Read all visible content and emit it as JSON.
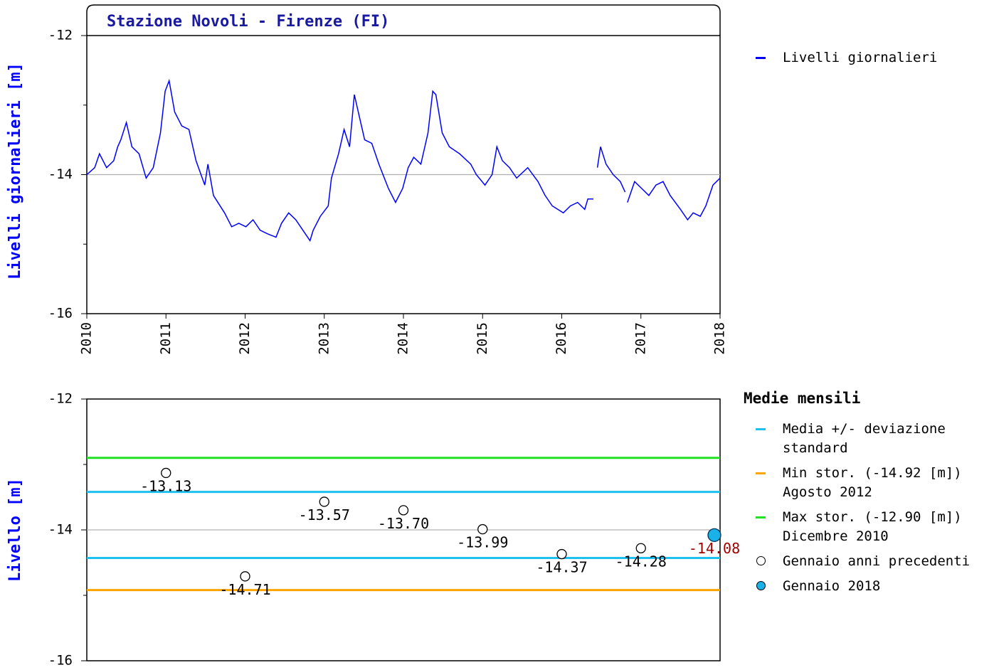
{
  "chart_data": [
    {
      "type": "line",
      "title": "Stazione Novoli - Firenze (FI)",
      "ylabel": "Livelli giornalieri [m]",
      "x": [
        2010.0,
        2010.1,
        2010.16,
        2010.25,
        2010.34,
        2010.39,
        2010.43,
        2010.5,
        2010.57,
        2010.66,
        2010.75,
        2010.84,
        2010.93,
        2010.99,
        2011.04,
        2011.11,
        2011.2,
        2011.29,
        2011.38,
        2011.49,
        2011.53,
        2011.6,
        2011.74,
        2011.83,
        2011.92,
        2012.01,
        2012.1,
        2012.19,
        2012.28,
        2012.39,
        2012.46,
        2012.55,
        2012.64,
        2012.73,
        2012.82,
        2012.86,
        2012.95,
        2013.05,
        2013.09,
        2013.18,
        2013.25,
        2013.32,
        2013.38,
        2013.45,
        2013.51,
        2013.6,
        2013.69,
        2013.81,
        2013.9,
        2013.99,
        2014.06,
        2014.13,
        2014.22,
        2014.31,
        2014.37,
        2014.41,
        2014.49,
        2014.58,
        2014.71,
        2014.85,
        2014.92,
        2015.03,
        2015.12,
        2015.18,
        2015.25,
        2015.34,
        2015.43,
        2015.57,
        2015.7,
        2015.79,
        2015.88,
        2016.02,
        2016.11,
        2016.2,
        2016.29,
        2016.33,
        2016.4,
        2016.42,
        2016.45,
        2016.49,
        2016.56,
        2016.65,
        2016.74,
        2016.8,
        2016.81,
        2016.83,
        2016.92,
        2017.01,
        2017.1,
        2017.19,
        2017.28,
        2017.37,
        2017.5,
        2017.59,
        2017.66,
        2017.75,
        2017.82,
        2017.91,
        2018.0
      ],
      "series": [
        {
          "name": "Livelli giornalieri",
          "color": "#0000ff",
          "values": [
            -14.0,
            -13.9,
            -13.7,
            -13.9,
            -13.8,
            -13.6,
            -13.5,
            -13.25,
            -13.6,
            -13.7,
            -14.05,
            -13.9,
            -13.4,
            -12.8,
            -12.65,
            -13.1,
            -13.3,
            -13.35,
            -13.8,
            -14.15,
            -13.85,
            -14.3,
            -14.55,
            -14.75,
            -14.7,
            -14.75,
            -14.65,
            -14.8,
            -14.85,
            -14.9,
            -14.7,
            -14.55,
            -14.65,
            -14.8,
            -14.95,
            -14.8,
            -14.6,
            -14.45,
            -14.05,
            -13.7,
            -13.35,
            -13.6,
            -12.85,
            -13.2,
            -13.5,
            -13.55,
            -13.85,
            -14.2,
            -14.4,
            -14.2,
            -13.9,
            -13.75,
            -13.85,
            -13.4,
            -12.8,
            -12.85,
            -13.4,
            -13.6,
            -13.7,
            -13.85,
            -14.0,
            -14.15,
            -14.0,
            -13.6,
            -13.8,
            -13.9,
            -14.05,
            -13.9,
            -14.1,
            -14.3,
            -14.45,
            -14.55,
            -14.45,
            -14.4,
            -14.5,
            -14.35,
            -14.35,
            null,
            -13.9,
            -13.6,
            -13.85,
            -14.0,
            -14.1,
            -14.25,
            null,
            -14.4,
            -14.1,
            -14.2,
            -14.3,
            -14.15,
            -14.1,
            -14.3,
            -14.5,
            -14.65,
            -14.55,
            -14.6,
            -14.45,
            -14.15,
            -14.05
          ]
        }
      ],
      "xlim": [
        2010,
        2018
      ],
      "xticks": [
        2010,
        2011,
        2012,
        2013,
        2014,
        2015,
        2016,
        2017,
        2018
      ],
      "ylim": [
        -16,
        -12
      ],
      "yticks": [
        -16,
        -14,
        -12
      ],
      "yminorticks": [
        -15,
        -13
      ],
      "grid_lines": [
        -14
      ]
    },
    {
      "type": "scatter",
      "ylabel": "Livello [m]",
      "legend_title": "Medie mensili",
      "categories": [
        null,
        null,
        null,
        null,
        null,
        null,
        null,
        null
      ],
      "series": [
        {
          "name": "Gennaio anni precedenti",
          "color": "#ffffff",
          "label_color": "#000000",
          "values": [
            -13.13,
            -14.71,
            -13.57,
            -13.7,
            -13.99,
            -14.37,
            -14.28,
            null
          ],
          "value_labels": [
            "-13.13",
            "-14.71",
            "-13.57",
            "-13.70",
            "-13.99",
            "-14.37",
            "-14.28",
            null
          ]
        },
        {
          "name": "Gennaio 2018",
          "color": "#1ab0e8",
          "label_color": "#a00000",
          "values": [
            null,
            null,
            null,
            null,
            null,
            null,
            null,
            -14.08
          ],
          "value_labels": [
            null,
            null,
            null,
            null,
            null,
            null,
            null,
            "-14.08"
          ]
        }
      ],
      "ref_lines": [
        {
          "name": "Media +/- deviazione standard",
          "color": "#1ec0f0",
          "values": [
            -13.42,
            -14.43
          ]
        },
        {
          "name": "Min stor. (-14.92 [m]) Agosto 2012",
          "color": "#ffa500",
          "values": [
            -14.92
          ]
        },
        {
          "name": "Max stor. (-12.90 [m]) Dicembre 2010",
          "color": "#22e022",
          "values": [
            -12.9
          ]
        }
      ],
      "ylim": [
        -16,
        -12
      ],
      "yticks": [
        -16,
        -14,
        -12
      ],
      "yminorticks": [
        -15,
        -13
      ],
      "grid_lines": [
        -14
      ]
    }
  ]
}
